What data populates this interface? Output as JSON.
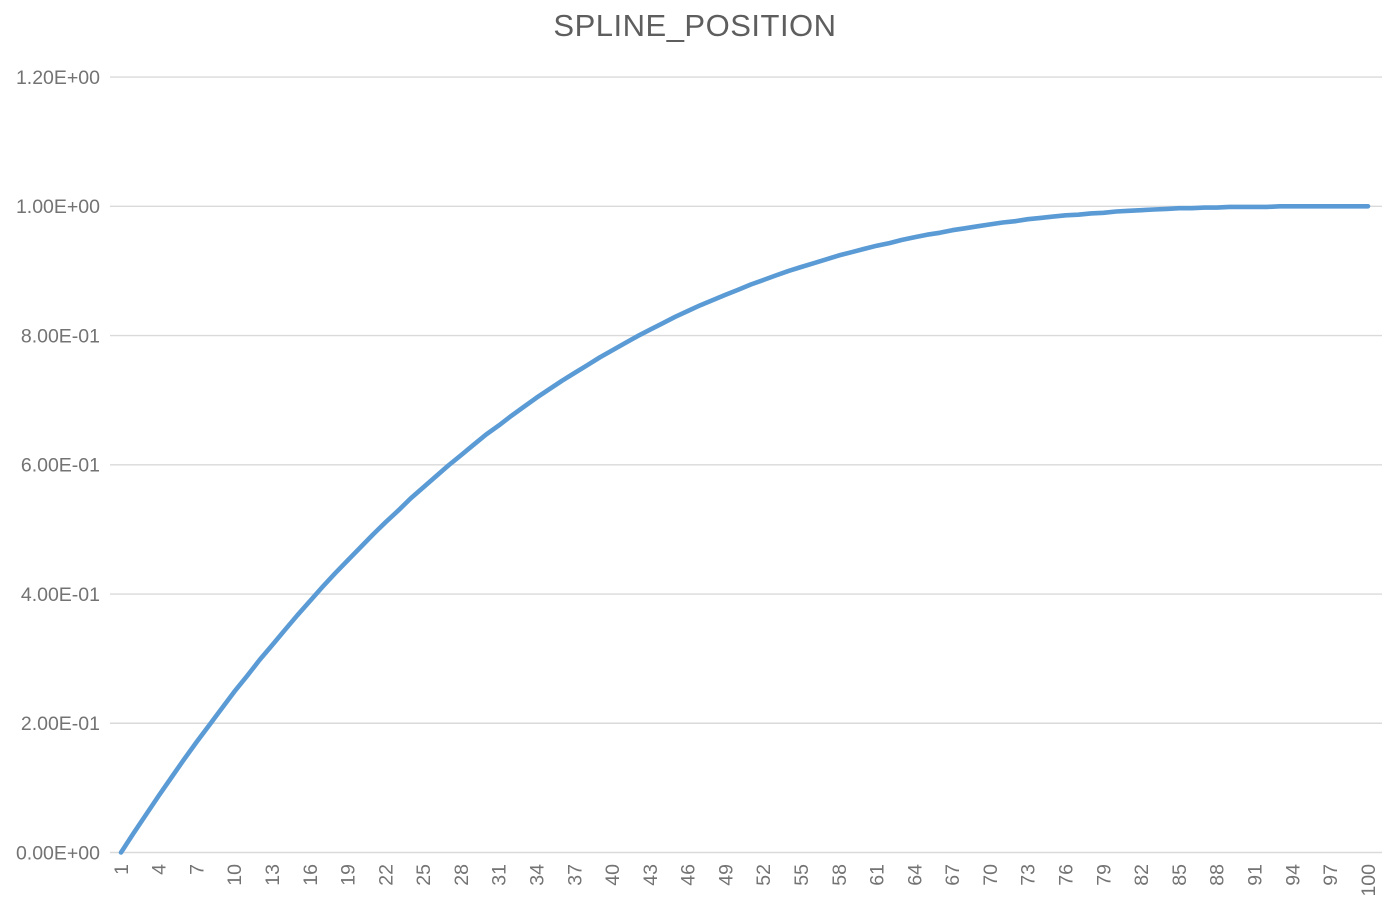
{
  "chart": {
    "title": "SPLINE_POSITION"
  },
  "chart_data": {
    "type": "line",
    "title": "SPLINE_POSITION",
    "xlabel": "",
    "ylabel": "",
    "grid": true,
    "legend_position": "none",
    "ylim": [
      0,
      1.2
    ],
    "y_ticks": [
      0.0,
      0.2,
      0.4,
      0.6,
      0.8,
      1.0,
      1.2
    ],
    "y_tick_labels": [
      "0.00E+00",
      "2.00E-01",
      "4.00E-01",
      "6.00E-01",
      "8.00E-01",
      "1.00E+00",
      "1.20E+00"
    ],
    "x_tick_labels": [
      "1",
      "4",
      "7",
      "10",
      "13",
      "16",
      "19",
      "22",
      "25",
      "28",
      "31",
      "34",
      "37",
      "40",
      "43",
      "46",
      "49",
      "52",
      "55",
      "58",
      "61",
      "64",
      "67",
      "70",
      "73",
      "76",
      "79",
      "82",
      "85",
      "88",
      "91",
      "94",
      "97",
      "100"
    ],
    "x": [
      1,
      2,
      3,
      4,
      5,
      6,
      7,
      8,
      9,
      10,
      11,
      12,
      13,
      14,
      15,
      16,
      17,
      18,
      19,
      20,
      21,
      22,
      23,
      24,
      25,
      26,
      27,
      28,
      29,
      30,
      31,
      32,
      33,
      34,
      35,
      36,
      37,
      38,
      39,
      40,
      41,
      42,
      43,
      44,
      45,
      46,
      47,
      48,
      49,
      50,
      51,
      52,
      53,
      54,
      55,
      56,
      57,
      58,
      59,
      60,
      61,
      62,
      63,
      64,
      65,
      66,
      67,
      68,
      69,
      70,
      71,
      72,
      73,
      74,
      75,
      76,
      77,
      78,
      79,
      80,
      81,
      82,
      83,
      84,
      85,
      86,
      87,
      88,
      89,
      90,
      91,
      92,
      93,
      94,
      95,
      96,
      97,
      98,
      99,
      100
    ],
    "series": [
      {
        "name": "SPLINE_POSITION",
        "values": [
          0.0,
          0.03,
          0.059,
          0.088,
          0.116,
          0.144,
          0.171,
          0.197,
          0.223,
          0.249,
          0.273,
          0.298,
          0.321,
          0.344,
          0.367,
          0.389,
          0.411,
          0.432,
          0.452,
          0.472,
          0.492,
          0.511,
          0.529,
          0.548,
          0.565,
          0.582,
          0.599,
          0.615,
          0.631,
          0.647,
          0.661,
          0.676,
          0.69,
          0.704,
          0.717,
          0.73,
          0.742,
          0.754,
          0.766,
          0.777,
          0.788,
          0.799,
          0.809,
          0.819,
          0.829,
          0.838,
          0.847,
          0.855,
          0.863,
          0.871,
          0.879,
          0.886,
          0.893,
          0.9,
          0.906,
          0.912,
          0.918,
          0.924,
          0.929,
          0.934,
          0.939,
          0.943,
          0.948,
          0.952,
          0.956,
          0.959,
          0.963,
          0.966,
          0.969,
          0.972,
          0.975,
          0.977,
          0.98,
          0.982,
          0.984,
          0.986,
          0.987,
          0.989,
          0.99,
          0.992,
          0.993,
          0.994,
          0.995,
          0.996,
          0.997,
          0.997,
          0.998,
          0.998,
          0.999,
          0.999,
          0.999,
          0.999,
          1.0,
          1.0,
          1.0,
          1.0,
          1.0,
          1.0,
          1.0,
          1.0
        ]
      }
    ],
    "colors": {
      "line": "#5B9BD5",
      "gridline": "#DADADA",
      "tick_label": "#737373",
      "title": "#5E5E5E"
    }
  }
}
